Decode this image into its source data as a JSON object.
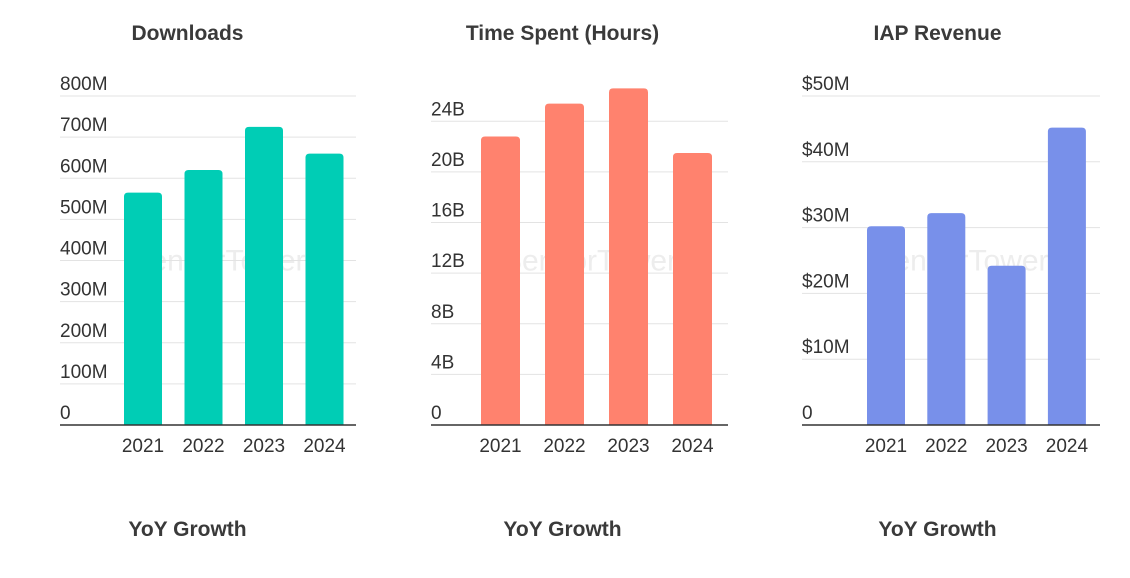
{
  "chart_data": [
    {
      "type": "bar",
      "title": "Downloads",
      "categories": [
        "2021",
        "2022",
        "2023",
        "2024"
      ],
      "values": [
        565,
        620,
        725,
        660
      ],
      "ylim": [
        0,
        800
      ],
      "ytick_values": [
        0,
        100,
        200,
        300,
        400,
        500,
        600,
        700,
        800
      ],
      "ytick_labels": [
        "0",
        "100M",
        "200M",
        "300M",
        "400M",
        "500M",
        "600M",
        "700M",
        "800M"
      ],
      "color": "#00CDB5",
      "grid": true
    },
    {
      "type": "bar",
      "title": "Time Spent (Hours)",
      "categories": [
        "2021",
        "2022",
        "2023",
        "2024"
      ],
      "values": [
        22.8,
        25.4,
        26.6,
        21.5
      ],
      "ylim": [
        0,
        26
      ],
      "ytick_values": [
        0,
        4,
        8,
        12,
        16,
        20,
        24
      ],
      "ytick_labels": [
        "0",
        "4B",
        "8B",
        "12B",
        "16B",
        "20B",
        "24B"
      ],
      "color": "#FF826E",
      "grid": true
    },
    {
      "type": "bar",
      "title": "IAP Revenue",
      "categories": [
        "2021",
        "2022",
        "2023",
        "2024"
      ],
      "values": [
        30.2,
        32.2,
        24.2,
        45.2
      ],
      "ylim": [
        0,
        50
      ],
      "ytick_values": [
        0,
        10,
        20,
        30,
        40,
        50
      ],
      "ytick_labels": [
        "0",
        "$10M",
        "$20M",
        "$30M",
        "$40M",
        "$50M"
      ],
      "color": "#7890EA",
      "grid": true
    }
  ],
  "sections": [
    {
      "yoy_title": "YoY Growth"
    },
    {
      "yoy_title": "YoY Growth"
    },
    {
      "yoy_title": "YoY Growth"
    }
  ],
  "watermark_text": "SensorTower"
}
